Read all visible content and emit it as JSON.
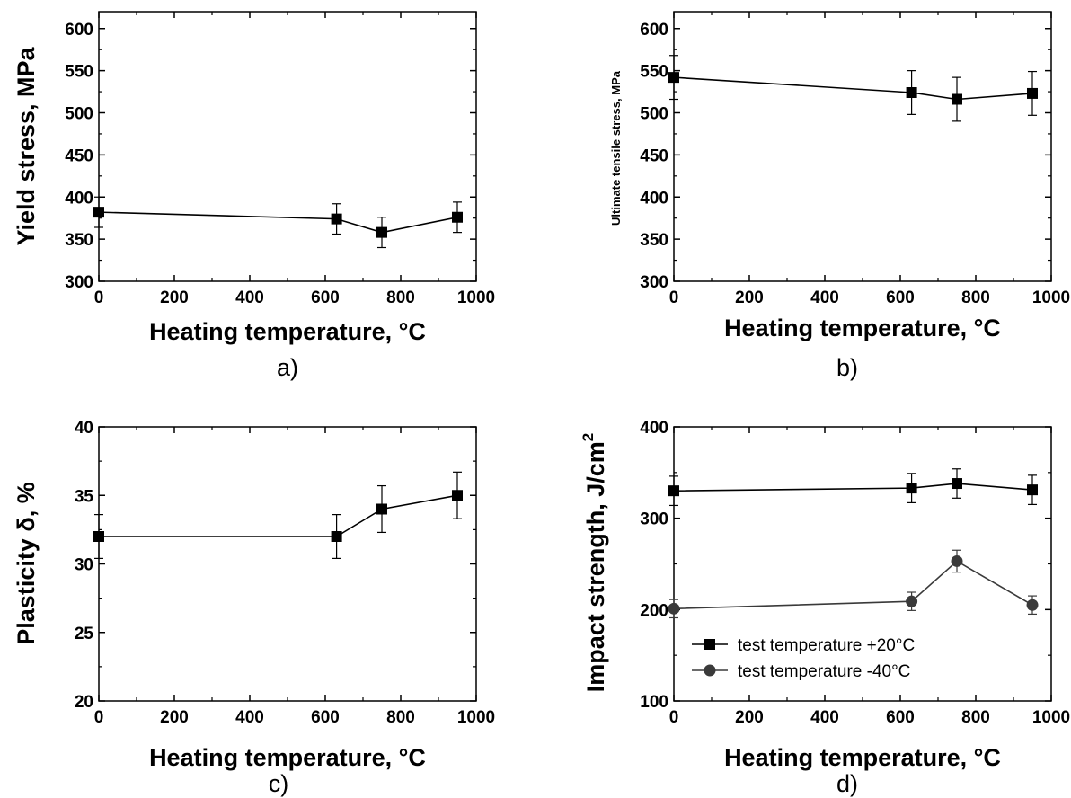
{
  "chart_data": [
    {
      "type": "line",
      "panel_label": "a)",
      "xlabel": "Heating temperature, °C",
      "ylabel": "Yield stress, MPa",
      "xlim": [
        0,
        1000
      ],
      "ylim": [
        300,
        620
      ],
      "xticks": [
        0,
        200,
        400,
        600,
        800,
        1000
      ],
      "yticks": [
        300,
        350,
        400,
        450,
        500,
        550,
        600
      ],
      "series": [
        {
          "name": "",
          "marker": "square",
          "color": "#000000",
          "x": [
            0,
            630,
            750,
            950
          ],
          "y": [
            382,
            374,
            358,
            376
          ],
          "err": [
            18,
            18,
            18,
            18
          ]
        }
      ]
    },
    {
      "type": "line",
      "panel_label": "b)",
      "xlabel": "Heating temperature, °C",
      "ylabel": "Ultimate tensile stress, MPa",
      "xlim": [
        0,
        1000
      ],
      "ylim": [
        300,
        620
      ],
      "xticks": [
        0,
        200,
        400,
        600,
        800,
        1000
      ],
      "yticks": [
        300,
        350,
        400,
        450,
        500,
        550,
        600
      ],
      "series": [
        {
          "name": "",
          "marker": "square",
          "color": "#000000",
          "x": [
            0,
            630,
            750,
            950
          ],
          "y": [
            542,
            524,
            516,
            523
          ],
          "err": [
            26,
            26,
            26,
            26
          ]
        }
      ]
    },
    {
      "type": "line",
      "panel_label": "c)",
      "xlabel": "Heating temperature, °C",
      "ylabel": "Plasticity δ, %",
      "xlim": [
        0,
        1000
      ],
      "ylim": [
        20,
        40
      ],
      "xticks": [
        0,
        200,
        400,
        600,
        800,
        1000
      ],
      "yticks": [
        20,
        25,
        30,
        35,
        40
      ],
      "series": [
        {
          "name": "",
          "marker": "square",
          "color": "#000000",
          "x": [
            0,
            630,
            750,
            950
          ],
          "y": [
            32,
            32,
            34,
            35
          ],
          "err": [
            1.6,
            1.6,
            1.7,
            1.7
          ]
        }
      ]
    },
    {
      "type": "line",
      "panel_label": "d)",
      "xlabel": "Heating temperature, °C",
      "ylabel": "Impact strength, J/cm",
      "ylabel_sup": "2",
      "xlim": [
        0,
        1000
      ],
      "ylim": [
        100,
        400
      ],
      "xticks": [
        0,
        200,
        400,
        600,
        800,
        1000
      ],
      "yticks": [
        100,
        200,
        300,
        400
      ],
      "legend": "bottom-left",
      "series": [
        {
          "name": "test temperature +20°C",
          "marker": "square",
          "color": "#000000",
          "x": [
            0,
            630,
            750,
            950
          ],
          "y": [
            330,
            333,
            338,
            331
          ],
          "err": [
            16,
            16,
            16,
            16
          ]
        },
        {
          "name": "test temperature -40°C",
          "marker": "circle",
          "color": "#3a3a3a",
          "x": [
            0,
            630,
            750,
            950
          ],
          "y": [
            201,
            209,
            253,
            205
          ],
          "err": [
            10,
            10,
            12,
            10
          ]
        }
      ]
    }
  ]
}
